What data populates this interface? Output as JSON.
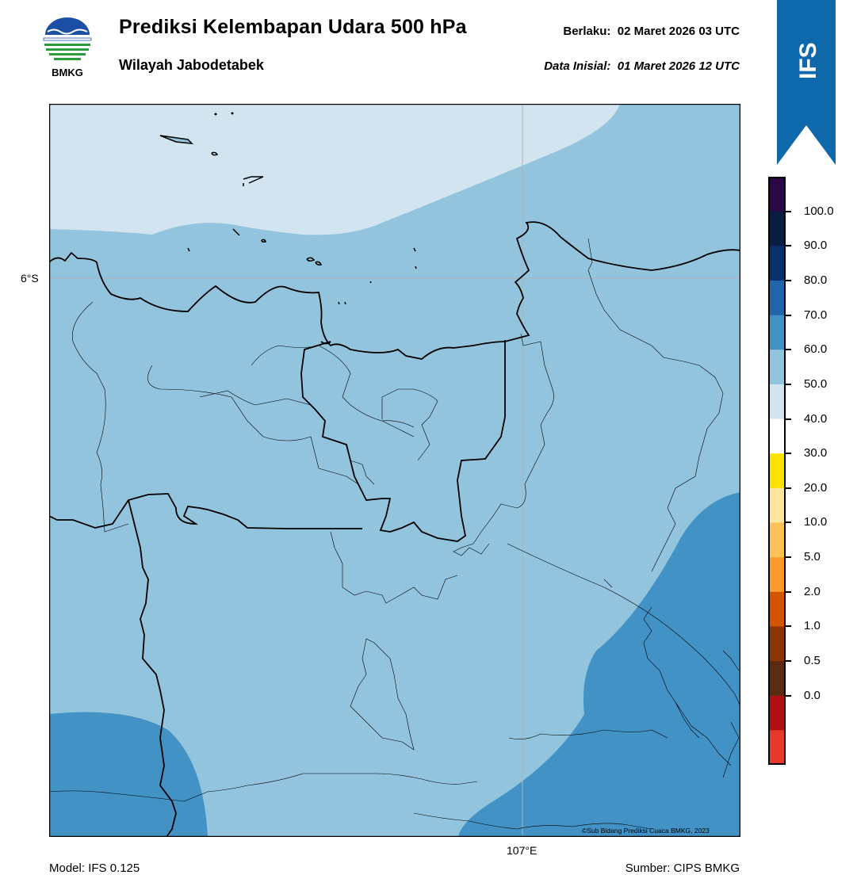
{
  "header": {
    "title": "Prediksi Kelembapan Udara 500 hPa",
    "region": "Wilayah Jabodetabek",
    "valid_label": "Berlaku:",
    "valid_time": "02 Maret 2026 03 UTC",
    "init_label": "Data Inisial:",
    "init_time": "01 Maret 2026 12 UTC"
  },
  "logo": {
    "text": "BMKG",
    "colors": {
      "blue": "#1a4fa3",
      "green": "#2e9b3a"
    }
  },
  "ribbon": {
    "text": "IFS",
    "color": "#0d69ac"
  },
  "map": {
    "lat_label": "6°S",
    "lon_label": "107°E",
    "credit": "©Sub Bidang Prediksi Cuaca BMKG, 2023",
    "fill_colors": {
      "pale": "#d2e4f0",
      "light": "#93c4dd",
      "medium": "#4292c6"
    }
  },
  "colorbar": {
    "labels": [
      "100.0",
      "90.0",
      "80.0",
      "70.0",
      "60.0",
      "50.0",
      "40.0",
      "30.0",
      "20.0",
      "10.0",
      "5.0",
      "2.0",
      "1.0",
      "0.5",
      "0.0"
    ],
    "colors": [
      "#2a0845",
      "#081d3f",
      "#08306b",
      "#2166ac",
      "#4292c6",
      "#93c4dd",
      "#d2e4f0",
      "#ffffff",
      "#ffe100",
      "#ffe59e",
      "#ffc15a",
      "#ff9b2e",
      "#d45500",
      "#8c3606",
      "#5a2a12",
      "#b20f12",
      "#e7392c"
    ]
  },
  "footer": {
    "model": "Model: IFS 0.125",
    "source": "Sumber: CIPS BMKG"
  }
}
